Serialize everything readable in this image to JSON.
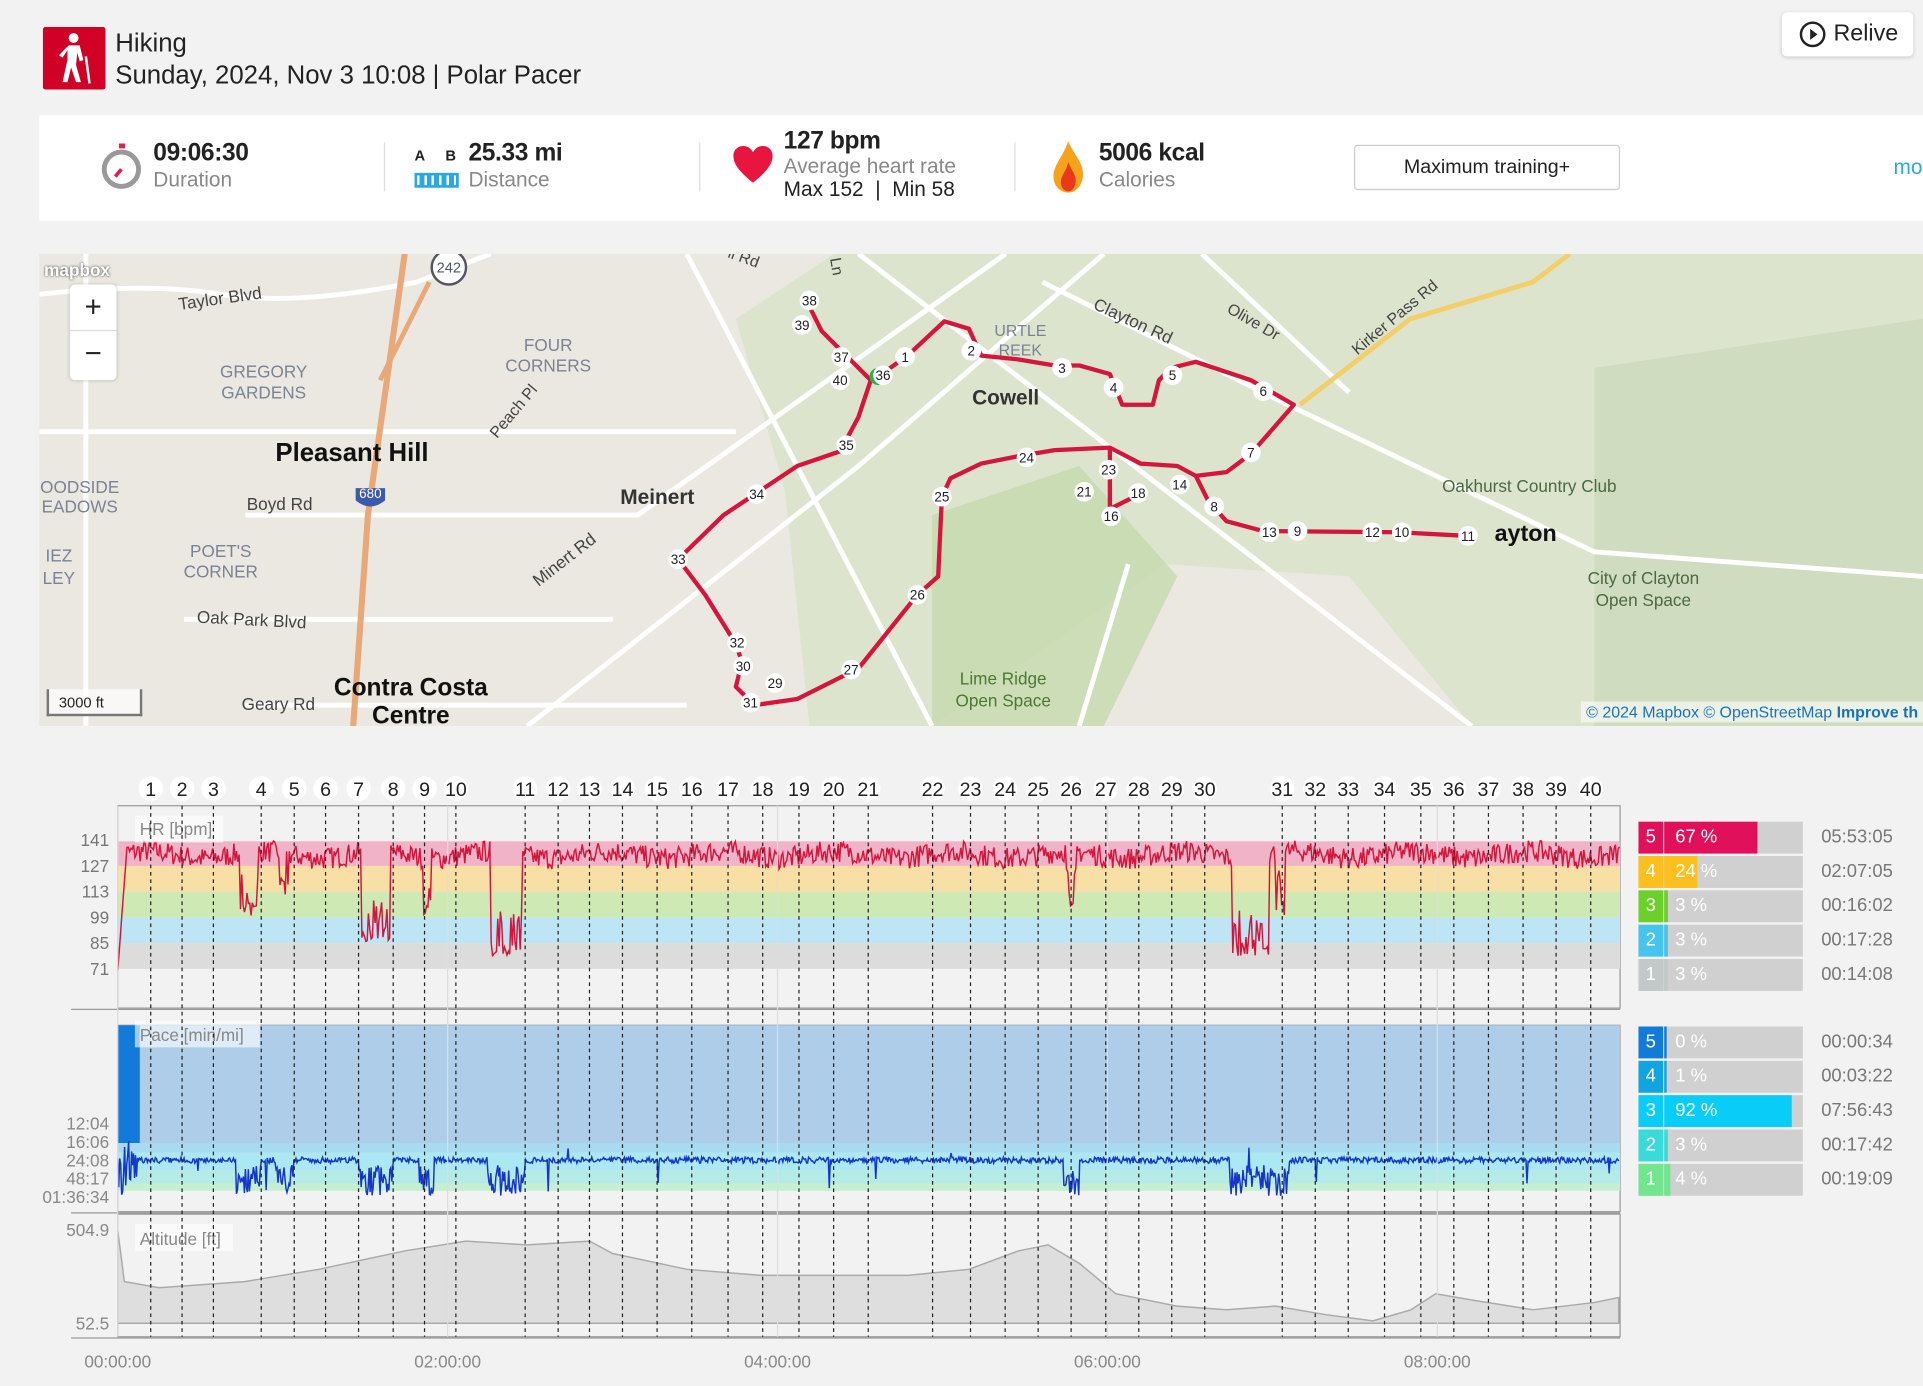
{
  "header": {
    "sport": "Hiking",
    "date_line": "Sunday, 2024, Nov 3 10:08 | Polar Pacer",
    "relive_label": "Relive"
  },
  "stats": {
    "duration": {
      "value": "09:06:30",
      "label": "Duration"
    },
    "distance": {
      "value": "25.33 mi",
      "label": "Distance",
      "icon_a": "A",
      "icon_b": "B"
    },
    "heart_rate": {
      "value": "127 bpm",
      "label": "Average heart rate",
      "minmax": "Max 152  |  Min 58"
    },
    "calories": {
      "value": "5006 kcal",
      "label": "Calories"
    },
    "training_button": "Maximum training+",
    "more_link": "mo"
  },
  "map": {
    "logo": "mapbox",
    "scale": "3000 ft",
    "zoom_in": "+",
    "zoom_out": "−",
    "attribution": "© 2024 Mapbox © OpenStreetMap",
    "improve": "Improve th",
    "labels": [
      "Taylor Blvd",
      "GREGORY",
      "GARDENS",
      "FOUR",
      "CORNERS",
      "Peach Pl",
      "Pleasant Hill",
      "Boyd Rd",
      "Meinert",
      "Minert Rd",
      "POET'S",
      "CORNER",
      "Oak Park Blvd",
      "Geary Rd",
      "Contra Costa",
      "Centre",
      "Cowell",
      "Clayton Rd",
      "Olive Dr",
      "Kirker Pass Rd",
      "Oakhurst Country Club",
      "ayton",
      "City of Clayton",
      "Open Space",
      "Lime Ridge",
      "Open Space",
      "URTLE",
      "REEK",
      "OODSIDE",
      "EADOWS",
      "IEZ",
      "LEY",
      "ll Rd",
      "Ln",
      "242",
      "680"
    ],
    "route_markers": [
      "1",
      "2",
      "3",
      "4",
      "5",
      "6",
      "7",
      "8",
      "9",
      "10",
      "11",
      "12",
      "13",
      "14",
      "16",
      "18",
      "21",
      "23",
      "24",
      "25",
      "26",
      "27",
      "29",
      "30",
      "31",
      "32",
      "33",
      "34",
      "35",
      "36",
      "37",
      "38",
      "39",
      "40"
    ]
  },
  "chart_data": {
    "type": "line",
    "x_ticks": [
      "00:00:00",
      "02:00:00",
      "04:00:00",
      "06:00:00",
      "08:00:00"
    ],
    "duration_h": 9.108,
    "laps": [
      "1",
      "2",
      "3",
      "4",
      "5",
      "6",
      "7",
      "8",
      "9",
      "10",
      "11",
      "12",
      "13",
      "14",
      "15",
      "16",
      "17",
      "18",
      "19",
      "20",
      "21",
      "22",
      "23",
      "24",
      "25",
      "26",
      "27",
      "28",
      "29",
      "30",
      "31",
      "32",
      "33",
      "34",
      "35",
      "36",
      "37",
      "38",
      "39",
      "40"
    ],
    "lap_times_h": [
      0.2,
      0.39,
      0.58,
      0.87,
      1.07,
      1.26,
      1.46,
      1.67,
      1.86,
      2.05,
      2.47,
      2.67,
      2.86,
      3.06,
      3.27,
      3.48,
      3.7,
      3.91,
      4.13,
      4.34,
      4.55,
      4.94,
      5.17,
      5.38,
      5.58,
      5.78,
      5.99,
      6.19,
      6.39,
      6.59,
      7.06,
      7.26,
      7.46,
      7.68,
      7.9,
      8.1,
      8.31,
      8.52,
      8.72,
      8.93
    ],
    "hr": {
      "label": "HR [bpm]",
      "ticks": [
        "141",
        "127",
        "113",
        "99",
        "85",
        "71"
      ],
      "typical": 133,
      "dips_h": [
        [
          0.74,
          0.85,
          100
        ],
        [
          0.98,
          1.04,
          110
        ],
        [
          1.48,
          1.65,
          85
        ],
        [
          1.85,
          1.9,
          100
        ],
        [
          2.26,
          2.45,
          78
        ],
        [
          5.75,
          5.81,
          105
        ],
        [
          6.76,
          6.98,
          78
        ],
        [
          7.02,
          7.08,
          100
        ]
      ]
    },
    "pace": {
      "label": "Pace [min/mi]",
      "ticks": [
        "12:04",
        "16:06",
        "24:08",
        "48:17",
        "01:36:34"
      ]
    },
    "altitude": {
      "label": "Altitude [ft]",
      "ticks": [
        "504.9",
        "52.5"
      ],
      "ylim": [
        52.5,
        504.9
      ],
      "points": [
        [
          0,
          499
        ],
        [
          0.04,
          252
        ],
        [
          0.25,
          223
        ],
        [
          0.77,
          252
        ],
        [
          1.22,
          311
        ],
        [
          1.74,
          399
        ],
        [
          2.11,
          446
        ],
        [
          2.48,
          428
        ],
        [
          2.86,
          446
        ],
        [
          3.0,
          387
        ],
        [
          3.45,
          311
        ],
        [
          3.9,
          282
        ],
        [
          4.34,
          282
        ],
        [
          4.79,
          282
        ],
        [
          5.16,
          311
        ],
        [
          5.46,
          399
        ],
        [
          5.64,
          428
        ],
        [
          5.83,
          340
        ],
        [
          6.05,
          194
        ],
        [
          6.42,
          135
        ],
        [
          6.72,
          117
        ],
        [
          7.02,
          135
        ],
        [
          7.32,
          94
        ],
        [
          7.61,
          64
        ],
        [
          7.84,
          117
        ],
        [
          7.99,
          194
        ],
        [
          8.21,
          164
        ],
        [
          8.58,
          117
        ],
        [
          8.95,
          152
        ],
        [
          9.1,
          176
        ]
      ]
    }
  },
  "hr_zones": [
    {
      "zone": "5",
      "pct": "67 %",
      "fraction": 0.67,
      "time": "05:53:05",
      "color": "#e0105a"
    },
    {
      "zone": "4",
      "pct": "24 %",
      "fraction": 0.24,
      "time": "02:07:05",
      "color": "#fbbf1e"
    },
    {
      "zone": "3",
      "pct": "3 %",
      "fraction": 0.03,
      "time": "00:16:02",
      "color": "#6ccf2a"
    },
    {
      "zone": "2",
      "pct": "3 %",
      "fraction": 0.03,
      "time": "00:17:28",
      "color": "#44c4ee"
    },
    {
      "zone": "1",
      "pct": "3 %",
      "fraction": 0.03,
      "time": "00:14:08",
      "color": "#c3c9c9"
    }
  ],
  "pace_zones": [
    {
      "zone": "5",
      "pct": "0 %",
      "fraction": 0.0,
      "time": "00:00:34",
      "color": "#127ad9"
    },
    {
      "zone": "4",
      "pct": "1 %",
      "fraction": 0.01,
      "time": "00:03:22",
      "color": "#12a4e0"
    },
    {
      "zone": "3",
      "pct": "92 %",
      "fraction": 0.92,
      "time": "07:56:43",
      "color": "#08cdf8"
    },
    {
      "zone": "2",
      "pct": "3 %",
      "fraction": 0.03,
      "time": "00:17:42",
      "color": "#38dada"
    },
    {
      "zone": "1",
      "pct": "4 %",
      "fraction": 0.04,
      "time": "00:19:09",
      "color": "#72e68e"
    }
  ]
}
